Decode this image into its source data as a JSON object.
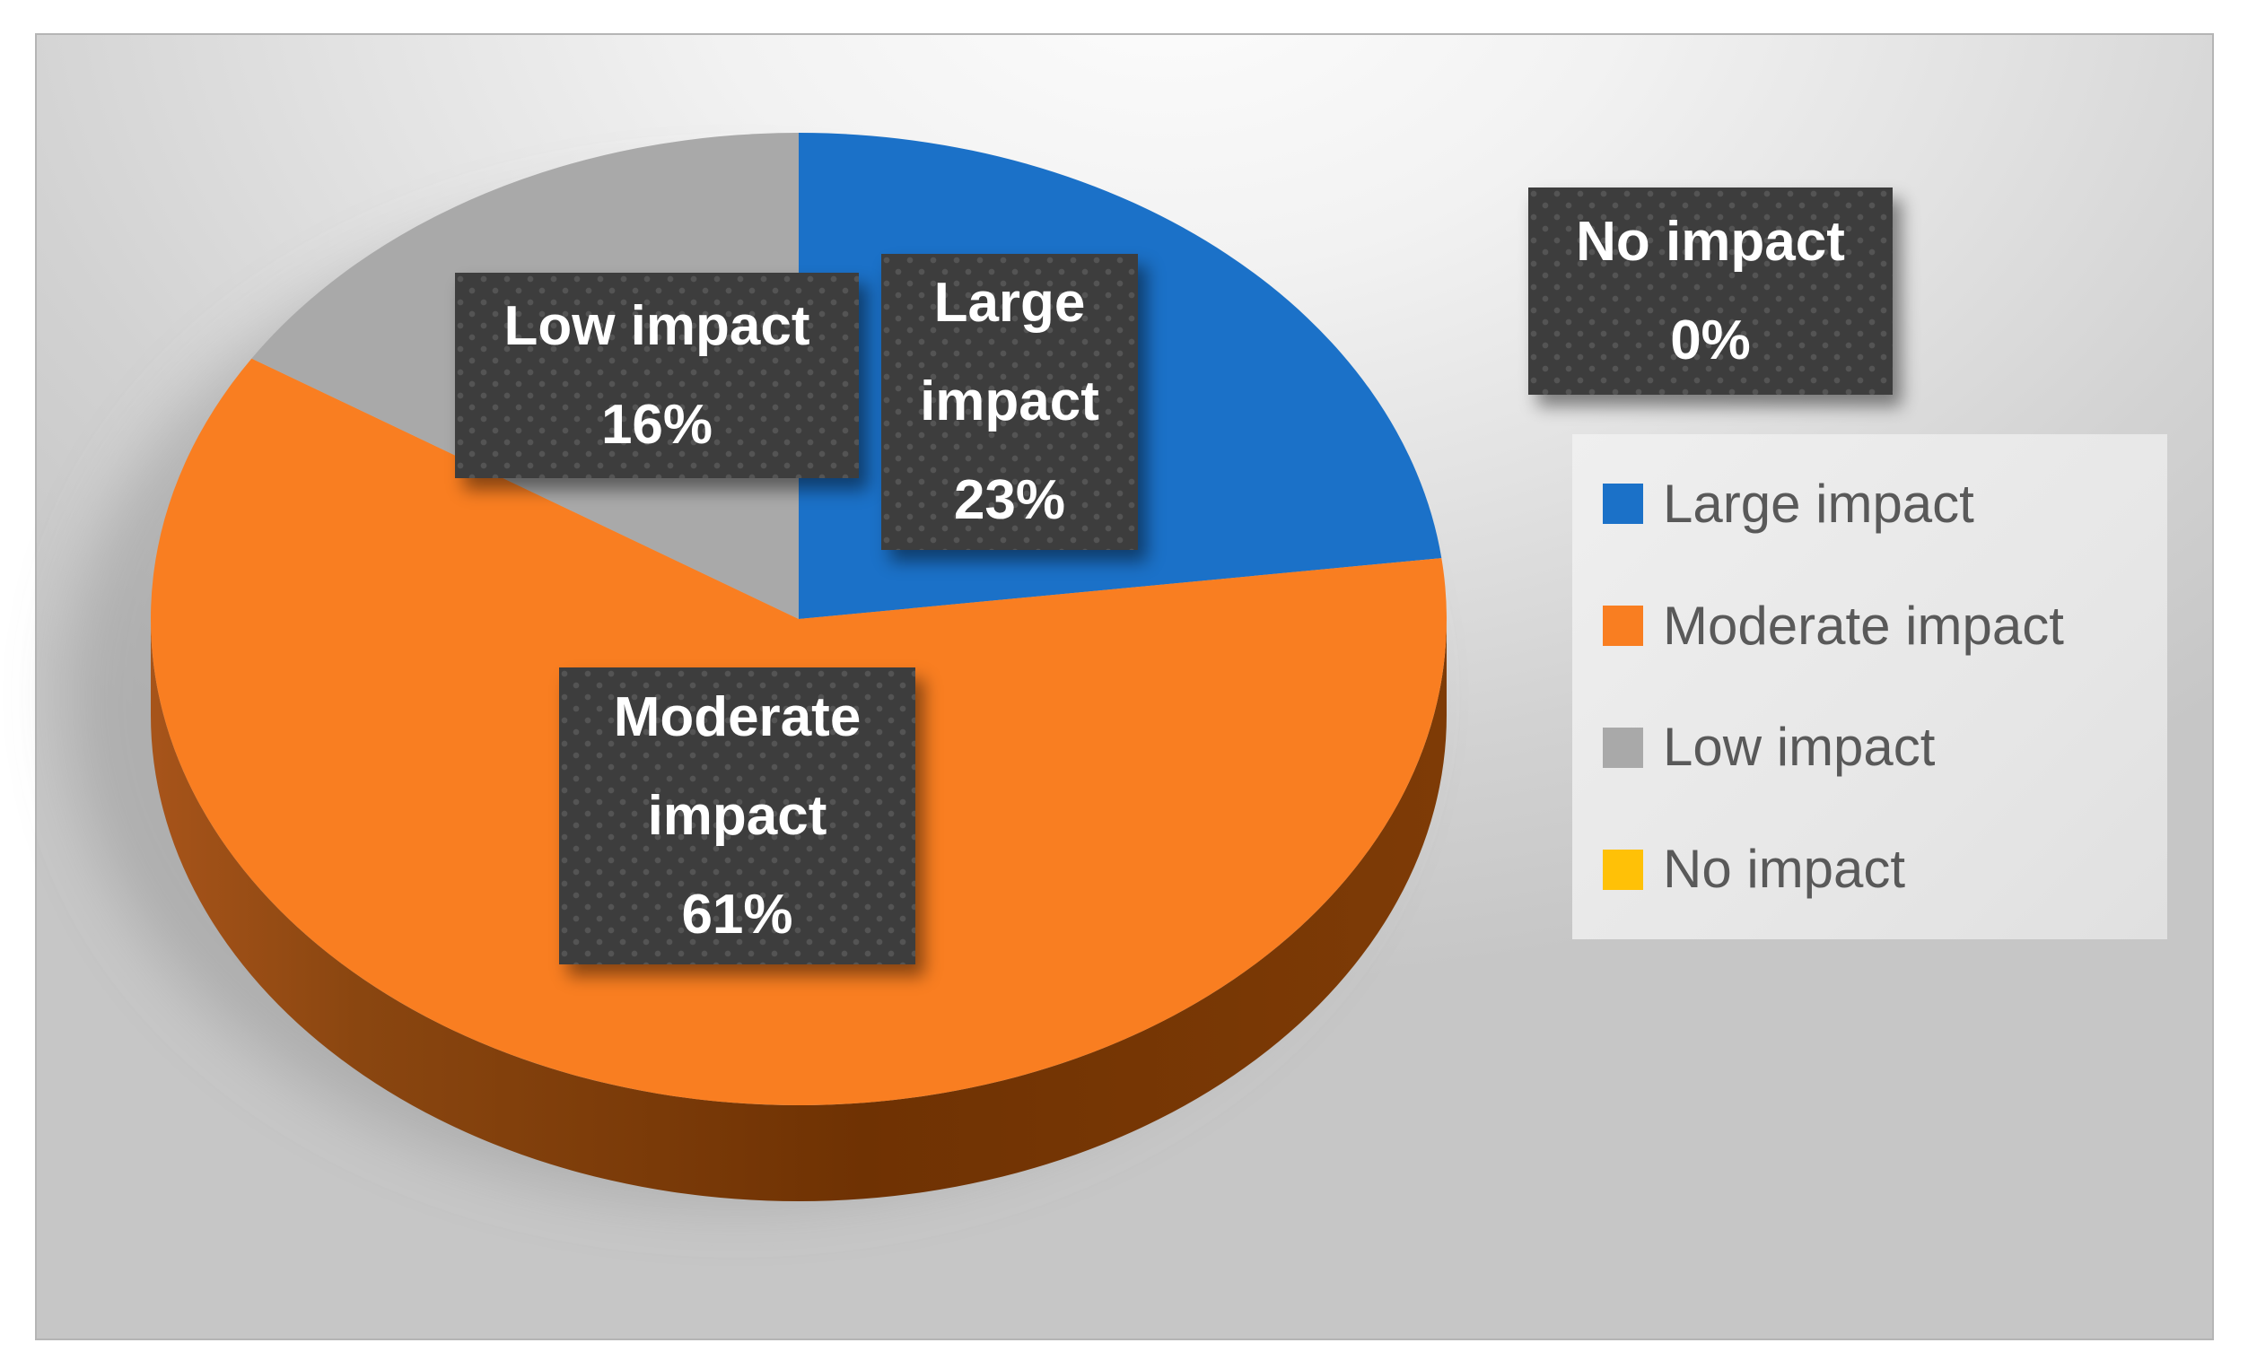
{
  "chart_data": {
    "type": "pie",
    "title": "",
    "labels": [
      "Large impact",
      "Moderate impact",
      "Low impact",
      "No impact"
    ],
    "values": [
      23,
      61,
      16,
      0
    ],
    "colors": [
      "#1B71C8",
      "#F97E21",
      "#A9A9A9",
      "#FFC107"
    ],
    "data_labels": [
      "Large impact 23%",
      "Moderate impact 61%",
      "Low impact 16%",
      "No impact 0%"
    ],
    "legend_position": "right",
    "effect": "3d-extruded",
    "start_angle_deg": 0,
    "direction": "clockwise",
    "rim_gradient": [
      "#A7541A",
      "#8A4610",
      "#6F3203",
      "#7E3B06"
    ],
    "shadow_color": "#8F8F8F"
  },
  "callouts": {
    "large": {
      "lines": [
        "Large",
        "impact",
        "23%"
      ]
    },
    "low": {
      "lines": [
        "Low impact",
        "16%"
      ]
    },
    "moderate": {
      "lines": [
        "Moderate",
        "impact",
        "61%"
      ]
    },
    "no": {
      "lines": [
        "No impact",
        "0%"
      ]
    }
  },
  "legend": {
    "items": [
      {
        "label": "Large impact",
        "color": "#1B71C8"
      },
      {
        "label": "Moderate impact",
        "color": "#F97E21"
      },
      {
        "label": "Low impact",
        "color": "#A9A9A9"
      },
      {
        "label": "No impact",
        "color": "#FFC107"
      }
    ]
  }
}
